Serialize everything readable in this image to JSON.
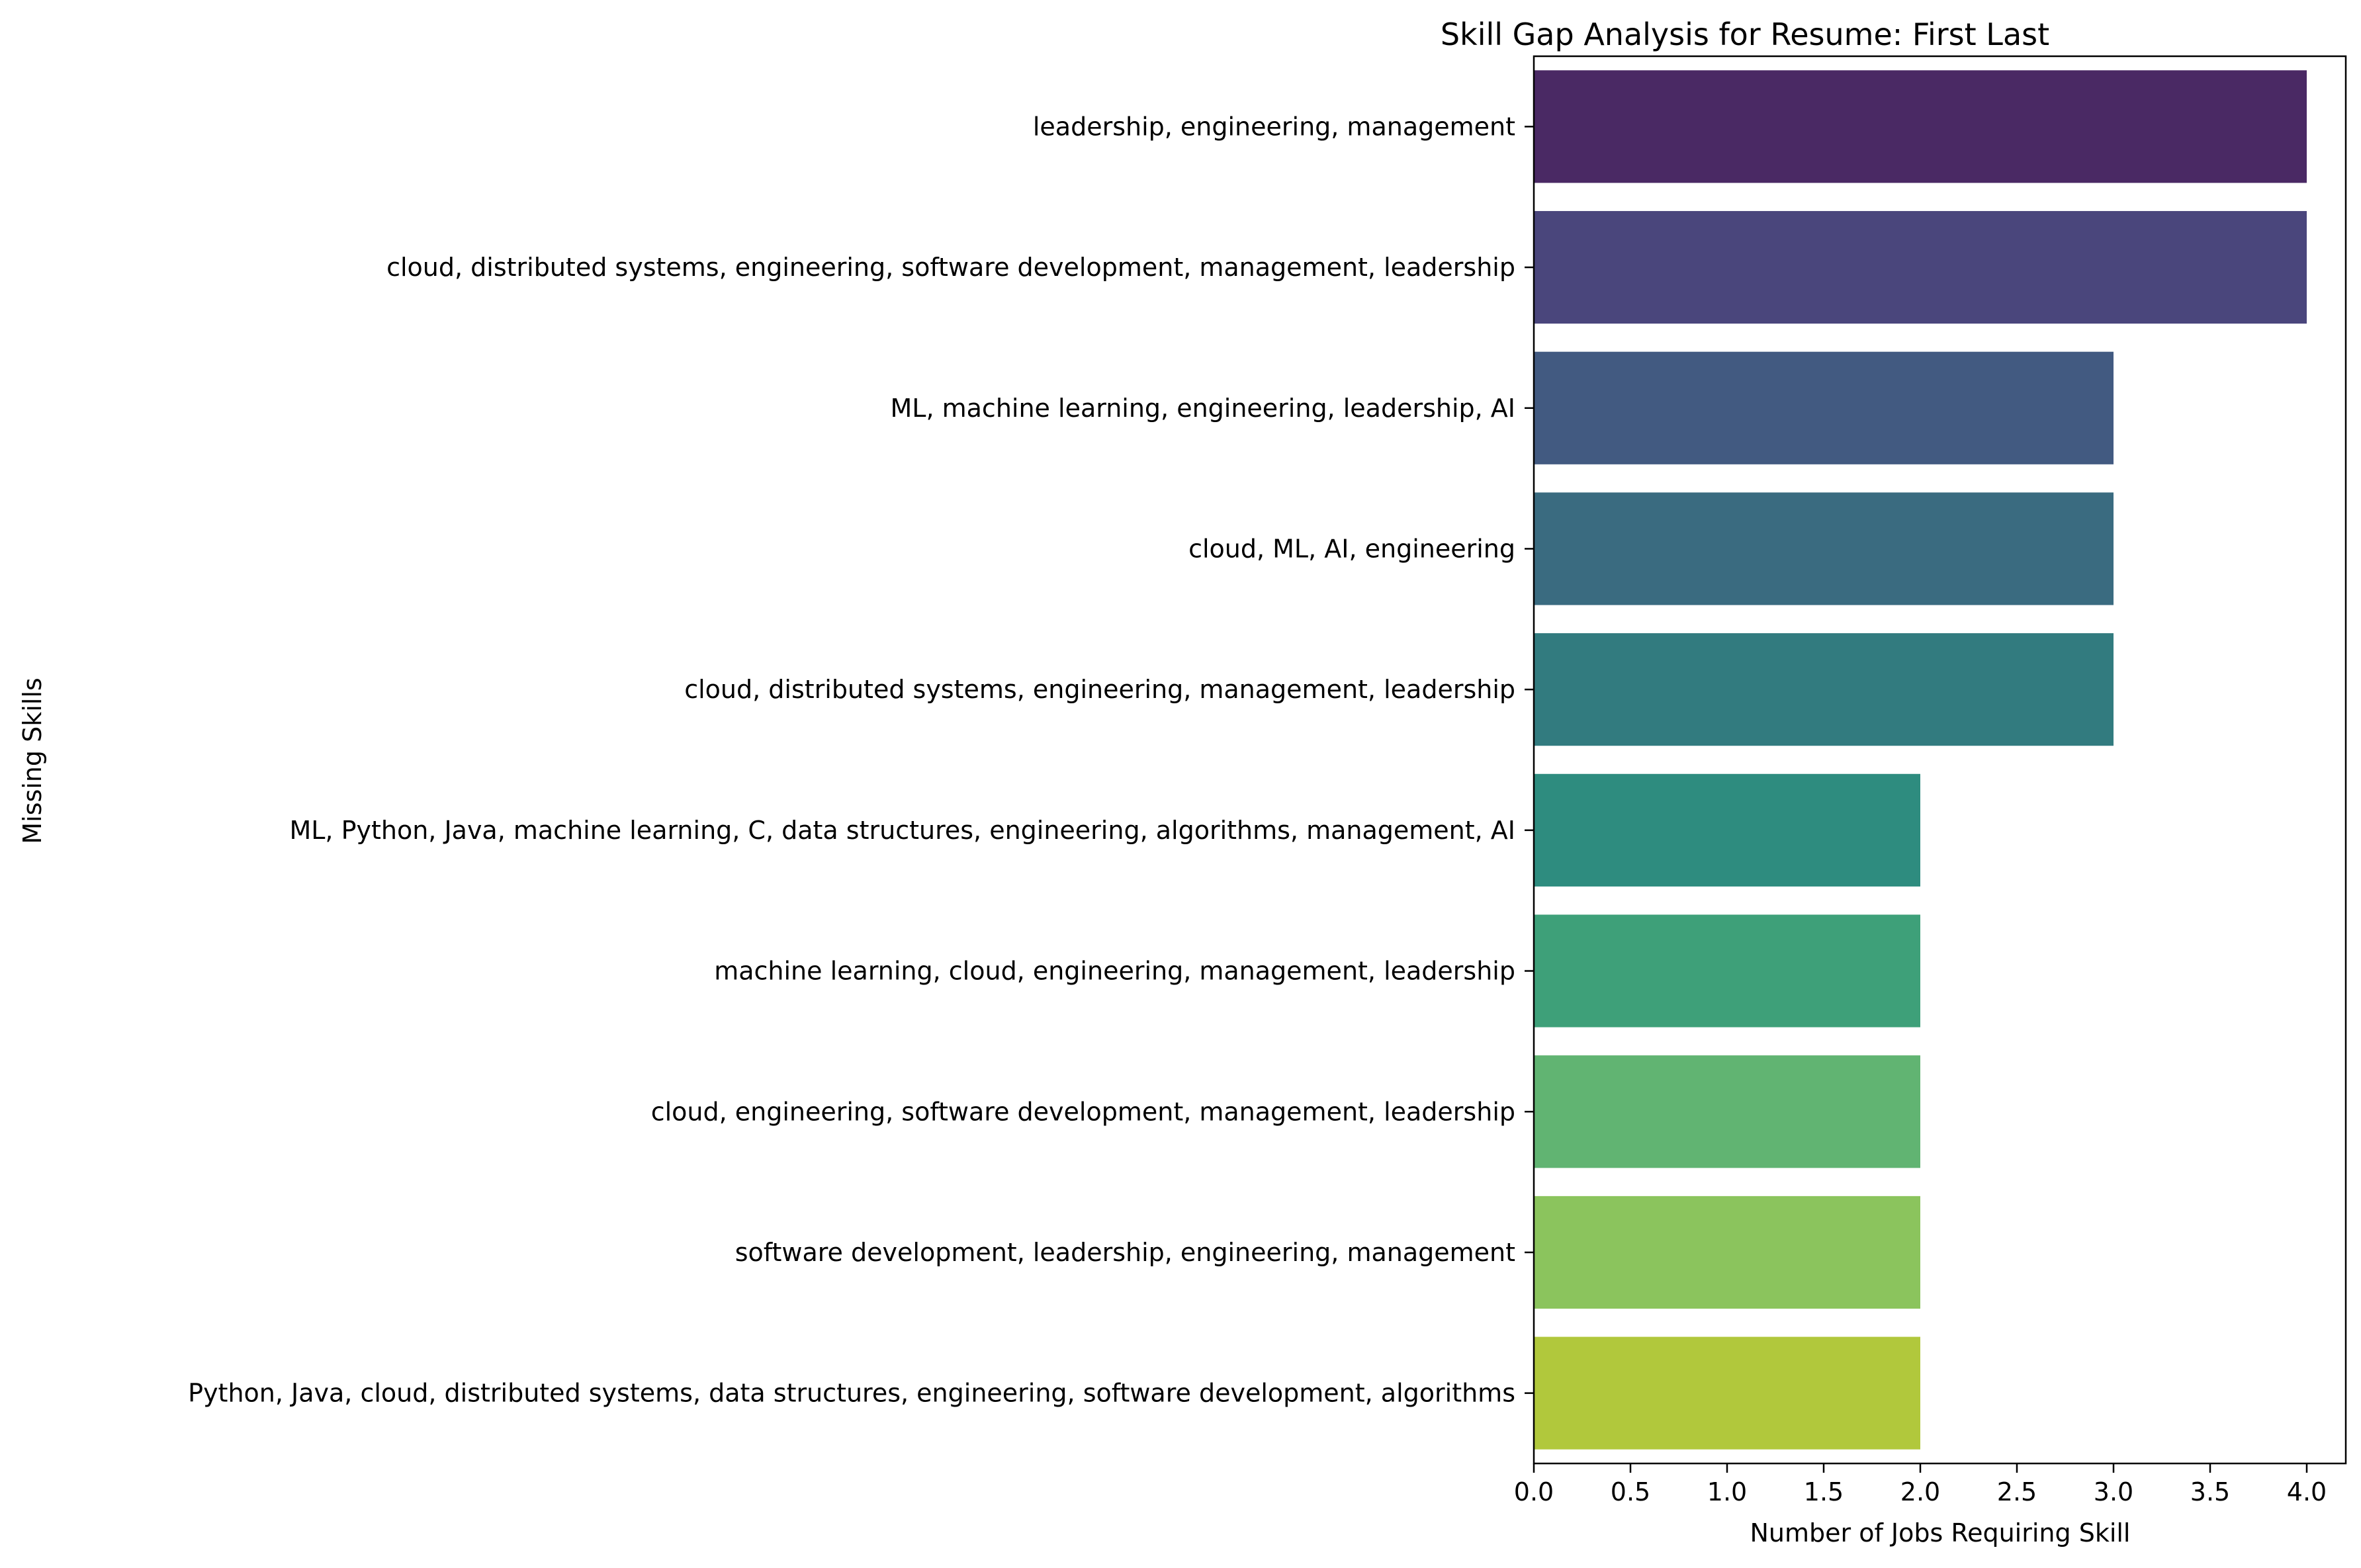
{
  "chart_data": {
    "type": "bar",
    "orientation": "horizontal",
    "title": "Skill Gap Analysis for Resume: First Last",
    "xlabel": "Number of Jobs Requiring Skill",
    "ylabel": "Missing Skills",
    "xlim": [
      0,
      4.0
    ],
    "xticks": [
      "0.0",
      "0.5",
      "1.0",
      "1.5",
      "2.0",
      "2.5",
      "3.0",
      "3.5",
      "4.0"
    ],
    "grid": false,
    "categories": [
      "leadership, engineering, management",
      "cloud, distributed systems, engineering, software development, management, leadership",
      "ML, machine learning, engineering, leadership, AI",
      "cloud, ML, AI, engineering",
      "cloud, distributed systems, engineering, management, leadership",
      "ML, Python, Java, machine learning, C, data structures, engineering, algorithms, management, AI",
      "machine learning, cloud, engineering, management, leadership",
      "cloud, engineering, software development, management, leadership",
      "software development, leadership, engineering, management",
      "Python, Java, cloud, distributed systems, data structures, engineering, software development, algorithms"
    ],
    "values": [
      4,
      4,
      3,
      3,
      3,
      2,
      2,
      2,
      2,
      2
    ],
    "colors": [
      "#4a2964",
      "#4a467c",
      "#425a81",
      "#3a6b80",
      "#327b7f",
      "#2e8c7f",
      "#3ea079",
      "#61b472",
      "#8bc45d",
      "#b1c83c"
    ]
  }
}
